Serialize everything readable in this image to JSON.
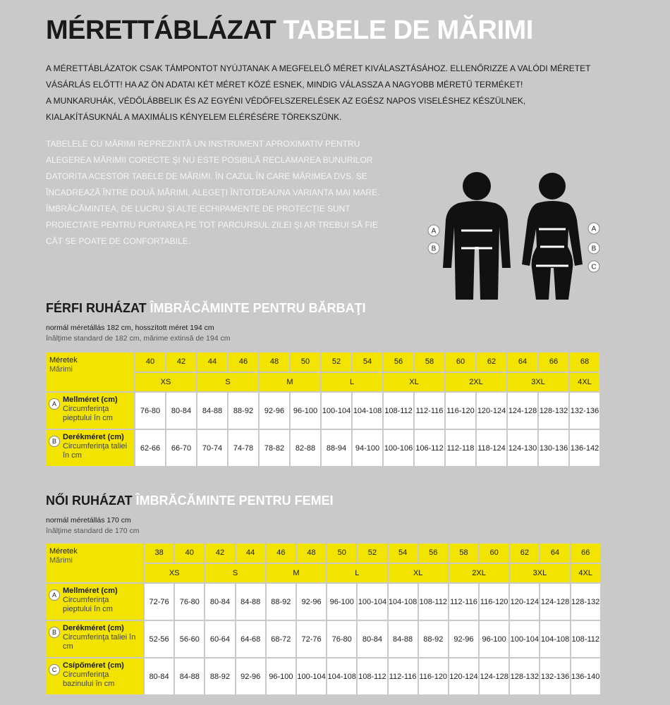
{
  "title": {
    "hu": "MÉRETTÁBLÁZAT",
    "ro": "TABELE DE MĂRIMI"
  },
  "intro_hu": [
    "A MÉRETTÁBLÁZATOK CSAK TÁMPONTOT NYÚJTANAK A MEGFELELŐ MÉRET KIVÁLASZTÁSÁHOZ. ELLENŐRIZZE A VALÓDI MÉRETET VÁSÁRLÁS ELŐTT! HA AZ ÖN ADATAI KÉT MÉRET KÖZÉ ESNEK, MINDIG VÁLASSZA A NAGYOBB MÉRETŰ TERMÉKET!",
    "A MUNKARUHÁK, VÉDŐLÁBBELIK ÉS AZ EGYÉNI VÉDŐFELSZERELÉSEK AZ EGÉSZ NAPOS VISELÉSHEZ KÉSZÜLNEK, KIALAKÍTÁSUKNÁL A MAXIMÁLIS KÉNYELEM ELÉRÉSÉRE TÖREKSZÜNK."
  ],
  "intro_ro": "TABELELE CU MĂRIMI REPREZINTĂ UN INSTRUMENT APROXIMATIV PENTRU ALEGEREA MĂRIMII CORECTE ŞI NU ESTE POSIBILĂ RECLAMAREA BUNURILOR DATORITA ACESTOR TABELE DE MĂRIMI. ÎN CAZUL ÎN CARE MĂRIMEA DVS. SE ÎNCADREAZĂ ÎNTRE DOUĂ MĂRIMI, ALEGEŢI ÎNTOTDEAUNA VARIANTA MAI MARE. ÎMBRĂCĂMINTEA, DE LUCRU ŞI ALTE ECHIPAMENTE DE PROTECŢIE SUNT PROIECTATE PENTRU PURTAREA PE TOT PARCURSUL ZILEI ŞI AR TREBUI SĂ FIE CÂT SE POATE DE CONFORTABILE.",
  "figure": {
    "man_labels": [
      "A",
      "B"
    ],
    "woman_labels": [
      "A",
      "B",
      "C"
    ]
  },
  "men_table": {
    "title_hu": "FÉRFI RUHÁZAT",
    "title_ro": "ÎMBRĂCĂMINTE PENTRU BĂRBAŢI",
    "note_hu": "normál méretállás 182 cm, hosszított méret 194 cm",
    "note_ro": "înălţime standard de 182 cm, mărime extinsă de 194 cm",
    "label_hu": "Méretek",
    "label_ro": "Mărimi",
    "sizes": [
      40,
      42,
      44,
      46,
      48,
      50,
      52,
      54,
      56,
      58,
      60,
      62,
      64,
      66,
      68
    ],
    "letters": [
      "XS",
      "S",
      "M",
      "L",
      "XL",
      "2XL",
      "3XL",
      "4XL"
    ],
    "rows": [
      {
        "letter": "A",
        "name_hu": "Mellméret (cm)",
        "name_ro": "Circumferinţa pieptului în cm",
        "values": [
          "76-80",
          "80-84",
          "84-88",
          "88-92",
          "92-96",
          "96-100",
          "100-104",
          "104-108",
          "108-112",
          "112-116",
          "116-120",
          "120-124",
          "124-128",
          "128-132",
          "132-136"
        ]
      },
      {
        "letter": "B",
        "name_hu": "Derékméret (cm)",
        "name_ro": "Circumferinţa taliei în cm",
        "values": [
          "62-66",
          "66-70",
          "70-74",
          "74-78",
          "78-82",
          "82-88",
          "88-94",
          "94-100",
          "100-106",
          "106-112",
          "112-118",
          "118-124",
          "124-130",
          "130-136",
          "136-142"
        ]
      }
    ]
  },
  "women_table": {
    "title_hu": "NŐI RUHÁZAT",
    "title_ro": "ÎMBRĂCĂMINTE PENTRU FEMEI",
    "note_hu": "normál méretállás 170 cm",
    "note_ro": "înălţime standard de 170 cm",
    "label_hu": "Méretek",
    "label_ro": "Mărimi",
    "sizes": [
      38,
      40,
      42,
      44,
      46,
      48,
      50,
      52,
      54,
      56,
      58,
      60,
      62,
      64,
      66
    ],
    "letters": [
      "XS",
      "S",
      "M",
      "L",
      "XL",
      "2XL",
      "3XL",
      "4XL"
    ],
    "rows": [
      {
        "letter": "A",
        "name_hu": "Mellméret (cm)",
        "name_ro": "Circumferinţa pieptului în cm",
        "values": [
          "72-76",
          "76-80",
          "80-84",
          "84-88",
          "88-92",
          "92-96",
          "96-100",
          "100-104",
          "104-108",
          "108-112",
          "112-116",
          "116-120",
          "120-124",
          "124-128",
          "128-132"
        ]
      },
      {
        "letter": "B",
        "name_hu": "Derékméret (cm)",
        "name_ro": "Circumferinţa taliei în cm",
        "values": [
          "52-56",
          "56-60",
          "60-64",
          "64-68",
          "68-72",
          "72-76",
          "76-80",
          "80-84",
          "84-88",
          "88-92",
          "92-96",
          "96-100",
          "100-104",
          "104-108",
          "108-112"
        ]
      },
      {
        "letter": "C",
        "name_hu": "Csípőméret (cm)",
        "name_ro": "Circumferinţa bazinului în cm",
        "values": [
          "80-84",
          "84-88",
          "88-92",
          "92-96",
          "96-100",
          "100-104",
          "104-108",
          "108-112",
          "112-116",
          "116-120",
          "120-124",
          "124-128",
          "128-132",
          "132-136",
          "136-140"
        ]
      }
    ]
  }
}
